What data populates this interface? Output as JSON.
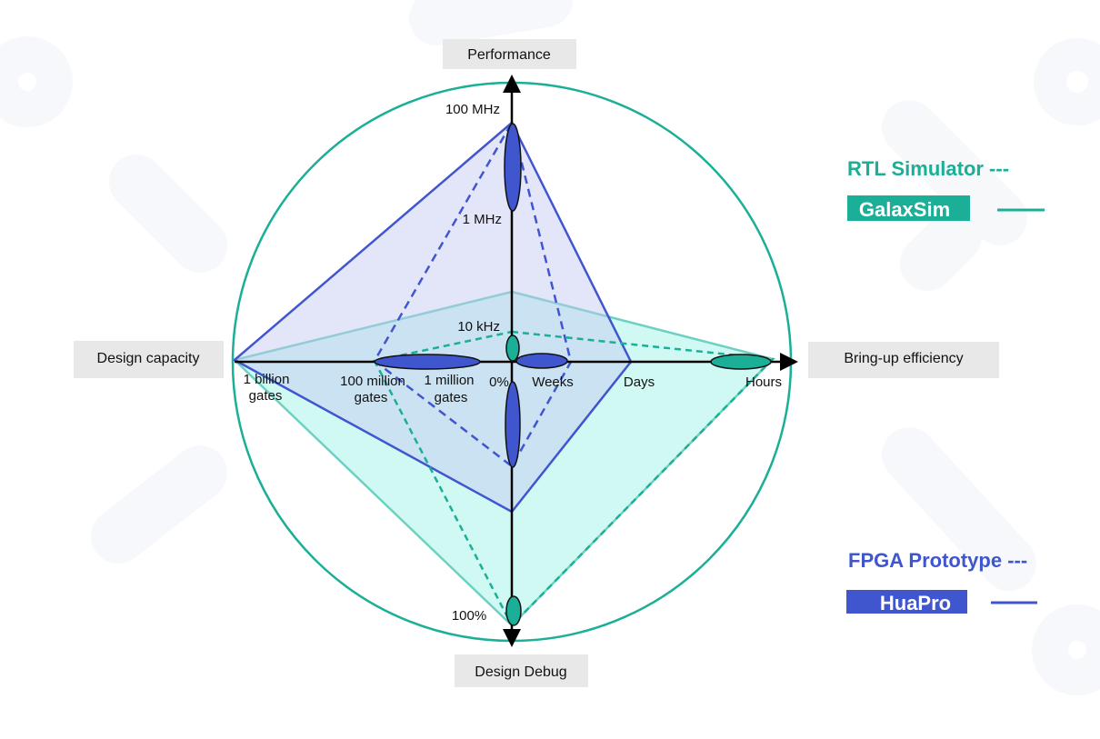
{
  "axes": {
    "top": {
      "title": "Performance",
      "ticks": [
        {
          "label": "100 MHz"
        },
        {
          "label": "1 MHz"
        },
        {
          "label": "10 kHz"
        }
      ]
    },
    "right": {
      "title": "Bring-up efficiency",
      "ticks": [
        {
          "label": "Weeks"
        },
        {
          "label": "Days"
        },
        {
          "label": "Hours"
        }
      ]
    },
    "bottom": {
      "title": "Design Debug",
      "ticks": [
        {
          "label": "0%"
        },
        {
          "label": "100%"
        }
      ]
    },
    "left": {
      "title": "Design capacity",
      "ticks": [
        {
          "line1": "1 million",
          "line2": "gates"
        },
        {
          "line1": "100 million",
          "line2": "gates"
        },
        {
          "line1": "1 billion",
          "line2": "gates"
        }
      ]
    }
  },
  "legend": {
    "rtl_simulator": "RTL Simulator ---",
    "galaxsim": "GalaxSim",
    "fpga_prototype": "FPGA Prototype ---",
    "huapro": "HuaPro"
  },
  "colors": {
    "teal": "#1aaf96",
    "teal_light": "#5fd3c0",
    "teal_fill": "#bff6f0",
    "blue": "#3f56cf",
    "blue_fill": "#c9ccf2",
    "axis": "#000000",
    "circle": "#1aaf96"
  }
}
